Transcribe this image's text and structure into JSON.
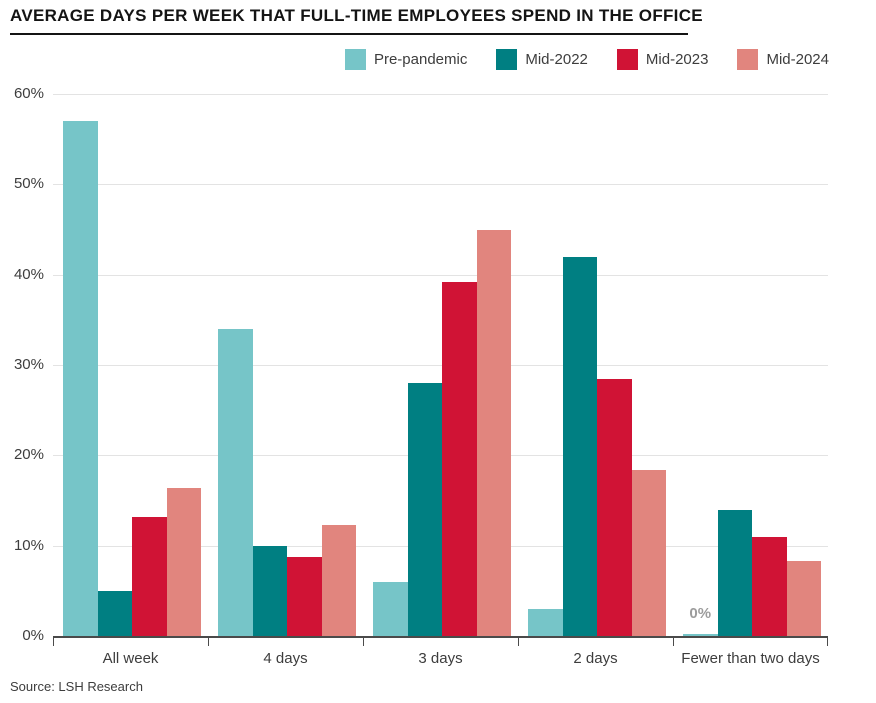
{
  "title": "AVERAGE DAYS PER WEEK THAT FULL-TIME EMPLOYEES SPEND IN THE OFFICE",
  "source": "Source: LSH Research",
  "colors": {
    "title": "#141414",
    "axis": "#4a4a4a",
    "gridline": "#e3e3e3",
    "tick_label": "#3d3d3d",
    "zero_label": "#9c9c9c",
    "background": "#ffffff"
  },
  "chart_data": {
    "type": "bar",
    "title": "AVERAGE DAYS PER WEEK THAT FULL-TIME EMPLOYEES SPEND IN THE OFFICE",
    "categories": [
      "All week",
      "4 days",
      "3 days",
      "2 days",
      "Fewer than two days"
    ],
    "series": [
      {
        "name": "Pre-pandemic",
        "color": "#76c5c8",
        "values": [
          57,
          34,
          6,
          3,
          0
        ]
      },
      {
        "name": "Mid-2022",
        "color": "#007f82",
        "values": [
          5,
          10,
          28,
          42,
          14
        ]
      },
      {
        "name": "Mid-2023",
        "color": "#d01335",
        "values": [
          13.2,
          8.8,
          39.2,
          28.4,
          11
        ]
      },
      {
        "name": "Mid-2024",
        "color": "#e1857e",
        "values": [
          16.4,
          12.3,
          45,
          18.4,
          8.3
        ]
      }
    ],
    "xlabel": "",
    "ylabel": "",
    "ylim": [
      0,
      60
    ],
    "ytick_values": [
      0,
      10,
      20,
      30,
      40,
      50,
      60
    ],
    "ytick_labels": [
      "0%",
      "10%",
      "20%",
      "30%",
      "40%",
      "50%",
      "60%"
    ],
    "grid": true,
    "legend_position": "top-right",
    "annotations": [
      {
        "text": "0%",
        "category_index": 4,
        "series_index": 0
      }
    ]
  }
}
